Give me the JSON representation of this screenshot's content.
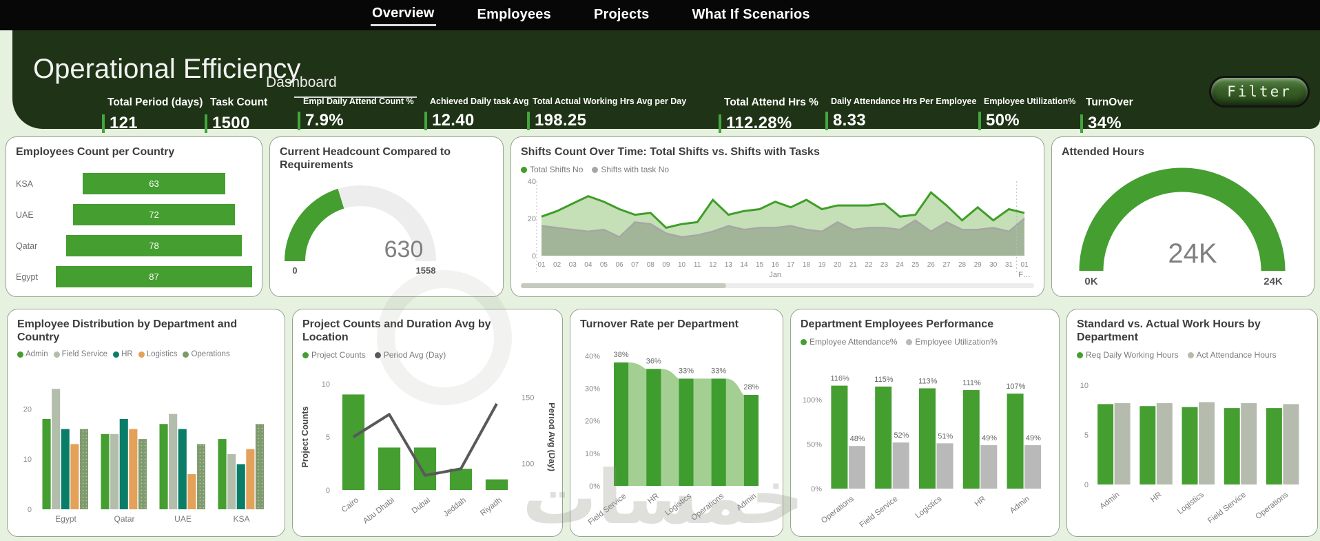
{
  "nav": {
    "tabs": [
      {
        "label": "Overview",
        "active": true
      },
      {
        "label": "Employees",
        "active": false
      },
      {
        "label": "Projects",
        "active": false
      },
      {
        "label": "What If Scenarios",
        "active": false
      }
    ]
  },
  "header": {
    "title": "Operational Efficiency",
    "subtitle": "Dashboard",
    "filter_label": "Filter",
    "kpis": [
      {
        "label": "Total Period (days)",
        "value": "121"
      },
      {
        "label": "Task Count",
        "value": "1500"
      },
      {
        "label": "Empl Daily Attend Count %",
        "value": "7.9%"
      },
      {
        "label": "Achieved Daily task Avg",
        "value": "12.40"
      },
      {
        "label": "Total Actual Working Hrs Avg per Day",
        "value": "198.25"
      },
      {
        "label": "Total Attend Hrs %",
        "value": "112.28%"
      },
      {
        "label": "Daily Attendance Hrs Per Employee",
        "value": "8.33"
      },
      {
        "label": "Employee Utilization%",
        "value": "50%"
      },
      {
        "label": "TurnOver",
        "value": "34%"
      }
    ]
  },
  "colors": {
    "accent_green": "#449e30",
    "dark_green_header": "#1f3316",
    "page_bg": "#e7f1e0",
    "gray_series": "#b9b9b9",
    "hr_teal": "#0a7d68",
    "logistics_orange": "#e3a159",
    "field_service_gray": "#b2bdab",
    "operations_green": "#7f9b6e",
    "line_dark_gray": "#595959"
  },
  "watermark": {
    "text": "خمسات"
  },
  "chart_data": [
    {
      "type": "bar",
      "variant": "funnel-horizontal",
      "title": "Employees Count per Country",
      "categories": [
        "KSA",
        "UAE",
        "Qatar",
        "Egypt"
      ],
      "values": [
        63,
        72,
        78,
        87
      ]
    },
    {
      "type": "gauge",
      "title": "Current Headcount Compared to Requirements",
      "value": 630,
      "min": 0,
      "max": 1558,
      "display_value": "630",
      "min_label": "0",
      "max_label": "1558"
    },
    {
      "type": "area",
      "title": "Shifts Count Over Time: Total Shifts vs. Shifts with Tasks",
      "x": [
        "01",
        "02",
        "03",
        "04",
        "05",
        "06",
        "07",
        "08",
        "09",
        "10",
        "11",
        "12",
        "13",
        "14",
        "15",
        "16",
        "17",
        "18",
        "19",
        "20",
        "21",
        "22",
        "23",
        "24",
        "25",
        "26",
        "27",
        "28",
        "29",
        "30",
        "31",
        "01"
      ],
      "month_label": "Jan",
      "next_month_label": "F…",
      "ylim": [
        0,
        40
      ],
      "yticks": [
        0,
        20,
        40
      ],
      "legend_position": "top",
      "series": [
        {
          "name": "Total Shifts No",
          "color": "#3e9e28",
          "values": [
            21,
            24,
            28,
            32,
            29,
            25,
            22,
            23,
            15,
            17,
            18,
            30,
            22,
            24,
            25,
            29,
            26,
            30,
            25,
            27,
            27,
            27,
            28,
            21,
            22,
            34,
            27,
            19,
            26,
            19,
            25,
            23
          ]
        },
        {
          "name": "Shifts with task No",
          "color": "#a6a6a6",
          "values": [
            16,
            15,
            14,
            13,
            14,
            10,
            18,
            17,
            12,
            10,
            11,
            13,
            16,
            14,
            15,
            15,
            16,
            14,
            13,
            18,
            14,
            15,
            15,
            14,
            19,
            13,
            18,
            14,
            14,
            15,
            13,
            20
          ]
        }
      ]
    },
    {
      "type": "gauge",
      "title": "Attended Hours",
      "value": 24000,
      "min": 0,
      "max": 24000,
      "display_value": "24K",
      "min_label": "0K",
      "max_label": "24K"
    },
    {
      "type": "bar",
      "variant": "grouped",
      "title": "Employee Distribution by Department and Country",
      "categories": [
        "Egypt",
        "Qatar",
        "UAE",
        "KSA"
      ],
      "yticks": [
        0,
        10,
        20
      ],
      "ylim": [
        0,
        25
      ],
      "series": [
        {
          "name": "Admin",
          "color": "#449e30",
          "values": [
            18,
            15,
            17,
            14
          ]
        },
        {
          "name": "Field Service",
          "color": "#b2bdab",
          "values": [
            24,
            15,
            19,
            11
          ]
        },
        {
          "name": "HR",
          "color": "#0a7d68",
          "values": [
            16,
            18,
            16,
            9
          ]
        },
        {
          "name": "Logistics",
          "color": "#e3a159",
          "values": [
            13,
            16,
            7,
            12
          ]
        },
        {
          "name": "Operations",
          "color": "#7f9b6e",
          "dotted": true,
          "values": [
            16,
            14,
            13,
            17
          ]
        }
      ]
    },
    {
      "type": "bar",
      "variant": "combo",
      "title": "Project Counts and Duration Avg by Location",
      "categories": [
        "Cairo",
        "Abu Dhabi",
        "Dubai",
        "Jeddah",
        "Riyadh"
      ],
      "bar_series": {
        "name": "Project Counts",
        "color": "#449e30",
        "values": [
          9,
          4,
          4,
          2,
          1
        ]
      },
      "line_series": {
        "name": "Period Avg (Day)",
        "color": "#595959",
        "values": [
          120,
          137,
          91,
          96,
          145
        ]
      },
      "ylabel": "Project Counts",
      "y2label": "Period Avg (Day)",
      "yticks": [
        0,
        5,
        10
      ],
      "ylim": [
        0,
        10
      ],
      "y2ticks": [
        100,
        150
      ],
      "y2lim": [
        80,
        160
      ]
    },
    {
      "type": "bar",
      "variant": "funnel-vertical",
      "title": "Turnover Rate per Department",
      "categories": [
        "Field Service",
        "HR",
        "Logistics",
        "Operations",
        "Admin"
      ],
      "values": [
        38,
        36,
        33,
        33,
        28
      ],
      "labels": [
        "38%",
        "36%",
        "33%",
        "33%",
        "28%"
      ],
      "yticks": [
        "0%",
        "10%",
        "20%",
        "30%",
        "40%"
      ],
      "ytick_values": [
        0,
        10,
        20,
        30,
        40
      ],
      "ylim": [
        0,
        42
      ],
      "bar_color": "#3f9c2e",
      "connector_color": "#a3cf92"
    },
    {
      "type": "bar",
      "variant": "grouped",
      "title": "Department Employees Performance",
      "categories": [
        "Operations",
        "Field Service",
        "Logistics",
        "HR",
        "Admin"
      ],
      "yticks": [
        "0%",
        "50%",
        "100%"
      ],
      "ytick_values": [
        0,
        50,
        100
      ],
      "ylim": [
        0,
        132
      ],
      "show_labels": true,
      "label_suffix": "%",
      "rotate_x": true,
      "series": [
        {
          "name": "Employee Attendance%",
          "color": "#449e30",
          "values": [
            116,
            115,
            113,
            111,
            107
          ]
        },
        {
          "name": "Employee Utilization%",
          "color": "#b9b9b9",
          "values": [
            48,
            52,
            51,
            49,
            49
          ]
        }
      ]
    },
    {
      "type": "bar",
      "variant": "grouped",
      "title": "Standard vs. Actual Work Hours by Department",
      "categories": [
        "Admin",
        "HR",
        "Logistics",
        "Field Service",
        "Operations"
      ],
      "yticks": [
        0,
        5,
        10
      ],
      "ylim": [
        0,
        10
      ],
      "rotate_x": true,
      "series": [
        {
          "name": "Req Daily Working Hours",
          "color": "#449e30",
          "values": [
            8.1,
            7.9,
            7.8,
            7.7,
            7.7
          ]
        },
        {
          "name": "Act Attendance Hours",
          "color": "#b5bcae",
          "values": [
            8.2,
            8.2,
            8.3,
            8.2,
            8.1
          ]
        }
      ]
    }
  ]
}
